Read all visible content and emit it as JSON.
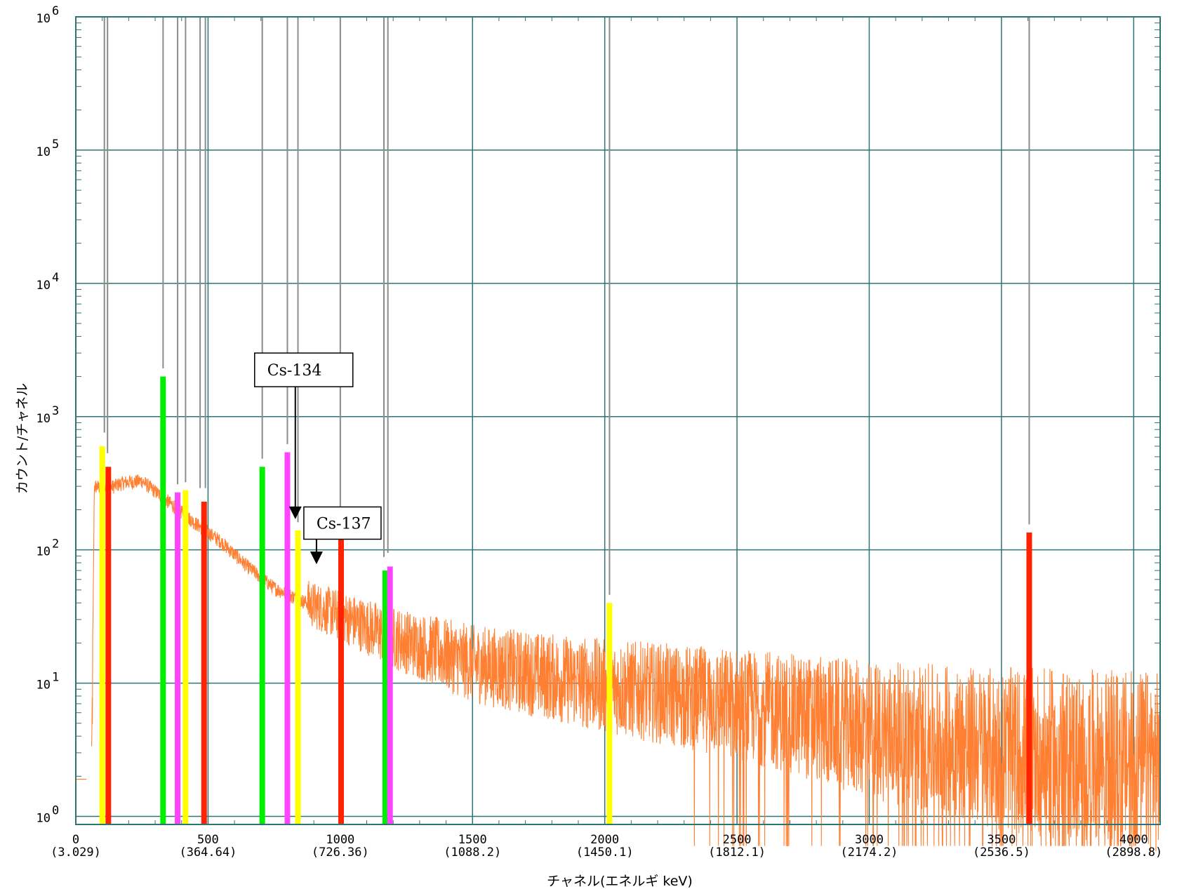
{
  "chart_data": {
    "type": "line",
    "title": "",
    "xlabel": "チャネル(エネルギ keV)",
    "ylabel": "カウント/チャネル",
    "y_scale": "log",
    "xlim": [
      0,
      4100
    ],
    "ylim_exponent": [
      0,
      6
    ],
    "x_ticks": [
      {
        "label": "0",
        "sub": "(3.029)",
        "value": 0
      },
      {
        "label": "500",
        "sub": "(364.64)",
        "value": 500
      },
      {
        "label": "1000",
        "sub": "(726.36)",
        "value": 1000
      },
      {
        "label": "1500",
        "sub": "(1088.2)",
        "value": 1500
      },
      {
        "label": "2000",
        "sub": "(1450.1)",
        "value": 2000
      },
      {
        "label": "2500",
        "sub": "(1812.1)",
        "value": 2500
      },
      {
        "label": "3000",
        "sub": "(2174.2)",
        "value": 3000
      },
      {
        "label": "3500",
        "sub": "(2536.5)",
        "value": 3500
      },
      {
        "label": "4000",
        "sub": "(2898.8)",
        "value": 4000
      }
    ],
    "y_ticks": [
      {
        "base": "10",
        "exp": "0",
        "value": 1
      },
      {
        "base": "10",
        "exp": "1",
        "value": 10
      },
      {
        "base": "10",
        "exp": "2",
        "value": 100
      },
      {
        "base": "10",
        "exp": "3",
        "value": 1000
      },
      {
        "base": "10",
        "exp": "4",
        "value": 10000
      },
      {
        "base": "10",
        "exp": "5",
        "value": 100000
      },
      {
        "base": "10",
        "exp": "6",
        "value": 1000000
      }
    ],
    "grid": true,
    "spectrum_color": "#ff8033",
    "spectrum_envelope": [
      {
        "x": 60,
        "y": 1.9
      },
      {
        "x": 70,
        "y": 300
      },
      {
        "x": 120,
        "y": 290
      },
      {
        "x": 180,
        "y": 320
      },
      {
        "x": 250,
        "y": 330
      },
      {
        "x": 350,
        "y": 230
      },
      {
        "x": 450,
        "y": 160
      },
      {
        "x": 550,
        "y": 115
      },
      {
        "x": 650,
        "y": 75
      },
      {
        "x": 750,
        "y": 52
      },
      {
        "x": 850,
        "y": 42
      },
      {
        "x": 1000,
        "y": 32
      },
      {
        "x": 1200,
        "y": 22
      },
      {
        "x": 1500,
        "y": 14
      },
      {
        "x": 2000,
        "y": 9.5
      },
      {
        "x": 2500,
        "y": 7
      },
      {
        "x": 3000,
        "y": 4.5
      },
      {
        "x": 3500,
        "y": 3.2
      },
      {
        "x": 4100,
        "y": 2.5
      }
    ],
    "peaks": [
      {
        "channel": 100,
        "height": 600,
        "color": "#ffff00"
      },
      {
        "channel": 123,
        "height": 420,
        "color": "#ff2200"
      },
      {
        "channel": 330,
        "height": 2000,
        "color": "#00ee00"
      },
      {
        "channel": 385,
        "height": 270,
        "color": "#ff44ff"
      },
      {
        "channel": 415,
        "height": 280,
        "color": "#ffff00"
      },
      {
        "channel": 485,
        "height": 230,
        "color": "#ff2200"
      },
      {
        "channel": 705,
        "height": 420,
        "color": "#00ee00"
      },
      {
        "channel": 800,
        "height": 540,
        "color": "#ff44ff"
      },
      {
        "channel": 840,
        "height": 140,
        "color": "#ffff00"
      },
      {
        "channel": 1003,
        "height": 150,
        "color": "#ff2200"
      },
      {
        "channel": 1170,
        "height": 70,
        "color": "#00ee00"
      },
      {
        "channel": 1188,
        "height": 75,
        "color": "#ff44ff"
      },
      {
        "channel": 2018,
        "height": 40,
        "color": "#ffff00"
      },
      {
        "channel": 3605,
        "height": 135,
        "color": "#ff2200"
      }
    ],
    "marker_lines": [
      108,
      120,
      330,
      385,
      415,
      470,
      490,
      705,
      800,
      840,
      1000,
      1165,
      1180,
      2018,
      3605
    ],
    "annotations": [
      {
        "text": "Cs-134",
        "target_channel": 830,
        "target_value": 170
      },
      {
        "text": "Cs-137",
        "target_channel": 910,
        "target_value": 78
      }
    ]
  }
}
